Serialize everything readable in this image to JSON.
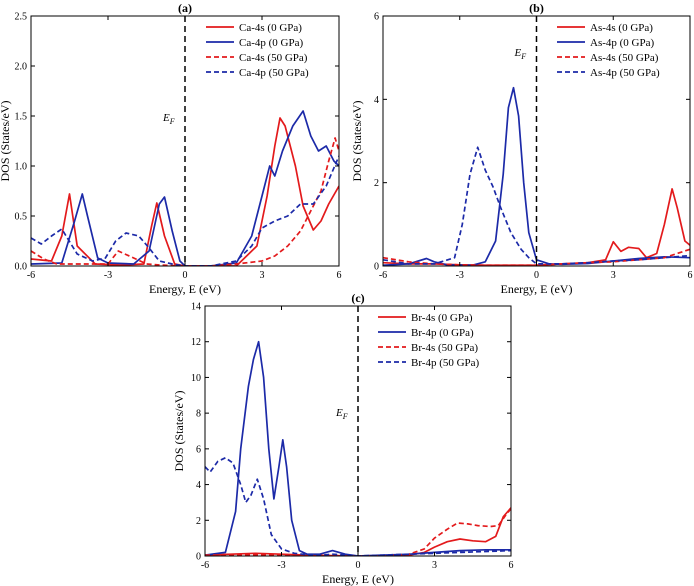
{
  "chart_data": [
    {
      "type": "line",
      "panel_label": "(a)",
      "xlabel": "Energy, E (eV)",
      "ylabel": "DOS (States/eV)",
      "xlim": [
        -6,
        6
      ],
      "ylim": [
        0,
        2.5
      ],
      "x_ticks": [
        -6,
        -3,
        0,
        3,
        6
      ],
      "x_tick_labels": [
        "-6",
        "-3",
        "0",
        "3",
        "6"
      ],
      "y_ticks": [
        0,
        0.5,
        1.0,
        1.5,
        2.0,
        2.5
      ],
      "y_tick_labels": [
        "0.0",
        "0.5",
        "1.0",
        "1.5",
        "2.0",
        "2.5"
      ],
      "fermi_level": {
        "x": 0,
        "label": "EF"
      },
      "legend": {
        "position": "top-right"
      },
      "series": [
        {
          "name": "Ca-4s (0 GPa)",
          "color": "#e31a1c",
          "dash": "solid",
          "x": [
            -6,
            -5.2,
            -4.8,
            -4.5,
            -4.2,
            -3.5,
            -2.5,
            -1.6,
            -1.3,
            -1.1,
            -0.8,
            -0.4,
            0,
            1,
            2,
            2.8,
            3.2,
            3.5,
            3.7,
            3.9,
            4.3,
            4.6,
            5.0,
            5.3,
            5.6,
            6
          ],
          "y": [
            0.07,
            0.05,
            0.3,
            0.72,
            0.2,
            0.02,
            0.01,
            0.02,
            0.4,
            0.63,
            0.3,
            0.02,
            0.0,
            0.0,
            0.0,
            0.2,
            0.7,
            1.2,
            1.48,
            1.4,
            1.0,
            0.6,
            0.36,
            0.45,
            0.62,
            0.8
          ]
        },
        {
          "name": "Ca-4p (0 GPa)",
          "color": "#1c2aa8",
          "dash": "solid",
          "x": [
            -6,
            -4.8,
            -4.3,
            -4.0,
            -3.8,
            -3.4,
            -3.0,
            -2.0,
            -1.4,
            -1.0,
            -0.8,
            -0.5,
            -0.2,
            0,
            1,
            2,
            2.6,
            3.0,
            3.3,
            3.5,
            3.8,
            4.2,
            4.6,
            4.9,
            5.2,
            5.5,
            5.8,
            6
          ],
          "y": [
            0.02,
            0.03,
            0.45,
            0.72,
            0.5,
            0.08,
            0.03,
            0.02,
            0.15,
            0.62,
            0.69,
            0.35,
            0.05,
            0.0,
            0.0,
            0.03,
            0.3,
            0.7,
            1.0,
            0.9,
            1.15,
            1.4,
            1.55,
            1.3,
            1.15,
            1.2,
            1.05,
            1.0
          ]
        },
        {
          "name": "Ca-4s (50 GPa)",
          "color": "#e31a1c",
          "dash": "dashed",
          "x": [
            -6,
            -5.5,
            -5.0,
            -4.0,
            -3.0,
            -2.6,
            -2.0,
            -1.5,
            -1.0,
            0,
            1,
            2,
            3,
            3.5,
            4.0,
            4.5,
            5.0,
            5.3,
            5.6,
            5.85,
            6
          ],
          "y": [
            0.15,
            0.07,
            0.02,
            0.02,
            0.02,
            0.15,
            0.08,
            0.02,
            0.01,
            0.0,
            0.0,
            0.02,
            0.05,
            0.1,
            0.2,
            0.35,
            0.6,
            0.75,
            1.05,
            1.28,
            1.15
          ]
        },
        {
          "name": "Ca-4p (50 GPa)",
          "color": "#1c2aa8",
          "dash": "dashed",
          "x": [
            -6,
            -5.6,
            -5.2,
            -4.8,
            -4.2,
            -3.6,
            -3.1,
            -2.7,
            -2.3,
            -1.8,
            -1.4,
            -1.0,
            -0.5,
            0,
            1,
            2,
            2.6,
            3.0,
            3.5,
            4.0,
            4.5,
            5.0,
            5.5,
            6
          ],
          "y": [
            0.28,
            0.22,
            0.3,
            0.37,
            0.12,
            0.05,
            0.08,
            0.25,
            0.33,
            0.3,
            0.18,
            0.05,
            0.02,
            0.0,
            0.0,
            0.05,
            0.2,
            0.38,
            0.45,
            0.5,
            0.62,
            0.62,
            0.8,
            1.1
          ]
        }
      ]
    },
    {
      "type": "line",
      "panel_label": "(b)",
      "xlabel": "Energy, E (eV)",
      "ylabel": "DOS (States/eV)",
      "xlim": [
        -6,
        6
      ],
      "ylim": [
        0,
        6
      ],
      "x_ticks": [
        -6,
        -3,
        0,
        3,
        6
      ],
      "x_tick_labels": [
        "-6",
        "-3",
        "0",
        "3",
        "6"
      ],
      "y_ticks": [
        0,
        2,
        4,
        6
      ],
      "y_tick_labels": [
        "0",
        "2",
        "4",
        "6"
      ],
      "fermi_level": {
        "x": 0,
        "label": "EF"
      },
      "legend": {
        "position": "top-right"
      },
      "series": [
        {
          "name": "As-4s (0 GPa)",
          "color": "#e31a1c",
          "dash": "solid",
          "x": [
            -6,
            -5,
            -4,
            -3,
            -2,
            -1,
            0,
            1,
            2,
            2.7,
            3.0,
            3.3,
            3.6,
            4.0,
            4.3,
            4.7,
            5.0,
            5.3,
            5.5,
            5.8,
            6
          ],
          "y": [
            0.08,
            0.05,
            0.05,
            0.03,
            0.02,
            0.02,
            0.02,
            0.05,
            0.08,
            0.15,
            0.58,
            0.35,
            0.45,
            0.42,
            0.2,
            0.3,
            1.0,
            1.85,
            1.4,
            0.6,
            0.5
          ]
        },
        {
          "name": "As-4p (0 GPa)",
          "color": "#1c2aa8",
          "dash": "solid",
          "x": [
            -6,
            -5,
            -4.3,
            -4.0,
            -3.5,
            -2.5,
            -2.0,
            -1.6,
            -1.3,
            -1.1,
            -0.9,
            -0.7,
            -0.5,
            -0.3,
            0,
            0.5,
            1,
            2,
            3,
            4,
            5,
            6
          ],
          "y": [
            0.02,
            0.05,
            0.18,
            0.1,
            0.03,
            0.02,
            0.1,
            0.6,
            2.2,
            3.8,
            4.28,
            3.6,
            2.0,
            0.8,
            0.15,
            0.05,
            0.04,
            0.06,
            0.12,
            0.18,
            0.22,
            0.2
          ]
        },
        {
          "name": "As-4s (50 GPa)",
          "color": "#e31a1c",
          "dash": "dashed",
          "x": [
            -6,
            -5,
            -4,
            -3,
            -2,
            -1,
            0,
            1,
            2,
            3,
            4,
            5,
            5.5,
            6
          ],
          "y": [
            0.2,
            0.1,
            0.05,
            0.03,
            0.02,
            0.02,
            0.02,
            0.05,
            0.08,
            0.1,
            0.15,
            0.2,
            0.3,
            0.4
          ]
        },
        {
          "name": "As-4p (50 GPa)",
          "color": "#1c2aa8",
          "dash": "dashed",
          "x": [
            -6,
            -5,
            -4.0,
            -3.2,
            -2.9,
            -2.6,
            -2.3,
            -2.0,
            -1.7,
            -1.4,
            -1.0,
            -0.6,
            -0.3,
            0,
            1,
            2,
            3,
            4,
            5,
            6
          ],
          "y": [
            0.15,
            0.05,
            0.05,
            0.2,
            1.0,
            2.2,
            2.85,
            2.3,
            1.9,
            1.4,
            0.8,
            0.4,
            0.2,
            0.05,
            0.05,
            0.08,
            0.12,
            0.15,
            0.2,
            0.25
          ]
        }
      ]
    },
    {
      "type": "line",
      "panel_label": "(c)",
      "xlabel": "Energy, E (eV)",
      "ylabel": "DOS (States/eV)",
      "xlim": [
        -6,
        6
      ],
      "ylim": [
        0,
        14
      ],
      "x_ticks": [
        -6,
        -3,
        0,
        3,
        6
      ],
      "x_tick_labels": [
        "-6",
        "-3",
        "0",
        "3",
        "6"
      ],
      "y_ticks": [
        0,
        2,
        4,
        6,
        8,
        10,
        12,
        14
      ],
      "y_tick_labels": [
        "0",
        "2",
        "4",
        "6",
        "8",
        "10",
        "12",
        "14"
      ],
      "fermi_level": {
        "x": 0,
        "label": "EF"
      },
      "legend": {
        "position": "top-right"
      },
      "series": [
        {
          "name": "Br-4s (0 GPa)",
          "color": "#e31a1c",
          "dash": "solid",
          "x": [
            -6,
            -5,
            -4,
            -3,
            -2,
            -1,
            0,
            1,
            2,
            2.6,
            3.0,
            3.5,
            4.0,
            4.5,
            5.0,
            5.4,
            5.7,
            6
          ],
          "y": [
            0.05,
            0.1,
            0.15,
            0.1,
            0.05,
            0.02,
            0.0,
            0.0,
            0.05,
            0.2,
            0.5,
            0.8,
            0.95,
            0.85,
            0.8,
            1.1,
            2.2,
            2.7
          ]
        },
        {
          "name": "Br-4p (0 GPa)",
          "color": "#1c2aa8",
          "dash": "solid",
          "x": [
            -6,
            -5.2,
            -4.8,
            -4.6,
            -4.3,
            -4.1,
            -3.9,
            -3.7,
            -3.5,
            -3.3,
            -3.1,
            -2.95,
            -2.8,
            -2.6,
            -2.3,
            -2.0,
            -1.5,
            -1.0,
            -0.5,
            0,
            1,
            2,
            3,
            4,
            5,
            6
          ],
          "y": [
            0.05,
            0.2,
            2.5,
            6.0,
            9.5,
            11.0,
            12.0,
            10.0,
            6.0,
            3.2,
            5.0,
            6.5,
            5.0,
            2.0,
            0.3,
            0.1,
            0.1,
            0.3,
            0.1,
            0.0,
            0.05,
            0.1,
            0.2,
            0.3,
            0.35,
            0.35
          ]
        },
        {
          "name": "Br-4s (50 GPa)",
          "color": "#e31a1c",
          "dash": "dashed",
          "x": [
            -6,
            -5,
            -4,
            -3,
            -2,
            -1,
            0,
            1,
            2,
            2.6,
            3.0,
            3.5,
            3.9,
            4.3,
            4.7,
            5.2,
            5.5,
            5.8,
            6
          ],
          "y": [
            0.05,
            0.05,
            0.08,
            0.05,
            0.02,
            0.02,
            0.0,
            0.0,
            0.1,
            0.4,
            1.0,
            1.5,
            1.85,
            1.8,
            1.7,
            1.65,
            1.7,
            2.3,
            2.65
          ]
        },
        {
          "name": "Br-4p (50 GPa)",
          "color": "#1c2aa8",
          "dash": "dashed",
          "x": [
            -6,
            -5.8,
            -5.5,
            -5.2,
            -4.9,
            -4.6,
            -4.4,
            -4.2,
            -3.95,
            -3.7,
            -3.4,
            -3.0,
            -2.5,
            -2.0,
            -1.5,
            -1.0,
            -0.5,
            0,
            1,
            2,
            3,
            4,
            5,
            6
          ],
          "y": [
            5.0,
            4.7,
            5.3,
            5.5,
            5.2,
            4.0,
            3.0,
            3.4,
            4.3,
            3.2,
            1.2,
            0.4,
            0.15,
            0.08,
            0.05,
            0.1,
            0.05,
            0.0,
            0.05,
            0.1,
            0.15,
            0.2,
            0.25,
            0.3
          ]
        }
      ]
    }
  ]
}
